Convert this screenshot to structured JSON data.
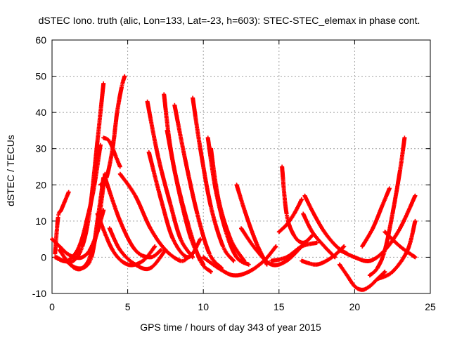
{
  "chart_data": {
    "type": "scatter",
    "title": "dSTEC Iono. truth (alic, Lon=133, Lat=-23, h=603): STEC-STEC_elemax in phase cont.",
    "xlabel": "GPS time / hours of day 343 of year 2015",
    "ylabel": "dSTEC  / TECUs",
    "xlim": [
      0,
      25
    ],
    "ylim": [
      -10,
      60
    ],
    "xticks": [
      0,
      5,
      10,
      15,
      20,
      25
    ],
    "yticks": [
      -10,
      0,
      10,
      20,
      30,
      40,
      50,
      60
    ],
    "grid": true,
    "marker": "+",
    "color": "#ff0000",
    "series": [
      {
        "x": [
          0.0,
          0.5,
          1.0,
          1.5,
          2.0,
          2.5,
          3.0,
          3.4
        ],
        "y": [
          5,
          3,
          1,
          0,
          0,
          2,
          7,
          13
        ]
      },
      {
        "x": [
          0.2,
          0.4,
          0.6,
          0.8,
          1.1
        ],
        "y": [
          1,
          11,
          13,
          15,
          18
        ]
      },
      {
        "x": [
          0.3,
          0.8,
          1.4,
          2.0,
          2.5,
          3.0,
          3.4
        ],
        "y": [
          0,
          -1,
          -1,
          3,
          13,
          32,
          48
        ]
      },
      {
        "x": [
          0.5,
          1.2,
          2.0,
          2.6,
          3.0,
          3.4
        ],
        "y": [
          2,
          -2,
          -3,
          0,
          10,
          22
        ]
      },
      {
        "x": [
          0.2,
          1.0,
          1.8,
          2.4,
          2.8,
          3.2
        ],
        "y": [
          0,
          -1,
          3,
          12,
          20,
          31
        ]
      },
      {
        "x": [
          1.0,
          1.5,
          2.0,
          2.5,
          3.0,
          3.5
        ],
        "y": [
          -1,
          -3,
          -3,
          0,
          8,
          23
        ]
      },
      {
        "x": [
          3.2,
          3.6,
          4.0,
          4.3,
          4.6,
          4.8
        ],
        "y": [
          20,
          22,
          30,
          40,
          47,
          50
        ]
      },
      {
        "x": [
          3.4,
          3.8,
          4.2,
          4.5
        ],
        "y": [
          33,
          32,
          28,
          25
        ]
      },
      {
        "x": [
          3.5,
          4.5,
          5.5,
          6.5,
          7.2
        ],
        "y": [
          22,
          10,
          2,
          0,
          2
        ]
      },
      {
        "x": [
          4.5,
          5.5,
          6.5,
          7.5,
          8.5,
          9.0
        ],
        "y": [
          23,
          17,
          8,
          2,
          -1,
          0
        ]
      },
      {
        "x": [
          3.0,
          4.0,
          5.0,
          6.0,
          6.8
        ],
        "y": [
          12,
          2,
          -2,
          -1,
          3
        ]
      },
      {
        "x": [
          3.8,
          4.5,
          5.5,
          6.5,
          7.5
        ],
        "y": [
          8,
          2,
          -2,
          -3,
          2
        ]
      },
      {
        "x": [
          6.3,
          7.0,
          7.8,
          8.5,
          9.3
        ],
        "y": [
          43,
          28,
          15,
          5,
          0
        ]
      },
      {
        "x": [
          6.4,
          7.2,
          8.0,
          9.0,
          9.8
        ],
        "y": [
          29,
          16,
          5,
          0,
          5
        ]
      },
      {
        "x": [
          7.4,
          7.8,
          8.4,
          9.2,
          10.0
        ],
        "y": [
          45,
          31,
          18,
          5,
          -2
        ]
      },
      {
        "x": [
          7.6,
          8.2,
          9.0,
          9.8,
          10.5
        ],
        "y": [
          35,
          22,
          9,
          -1,
          -4
        ]
      },
      {
        "x": [
          8.1,
          8.8,
          9.6,
          10.4,
          11.2
        ],
        "y": [
          42,
          27,
          12,
          1,
          -3
        ]
      },
      {
        "x": [
          9.3,
          9.8,
          10.5,
          11.3,
          12.0
        ],
        "y": [
          44,
          30,
          14,
          3,
          -1
        ]
      },
      {
        "x": [
          10.3,
          10.8,
          11.5,
          12.2,
          13.0
        ],
        "y": [
          33,
          19,
          7,
          0,
          -2
        ]
      },
      {
        "x": [
          10.5,
          11.0,
          11.8,
          12.7
        ],
        "y": [
          30,
          16,
          5,
          -1
        ]
      },
      {
        "x": [
          12.2,
          12.8,
          13.5,
          14.2
        ],
        "y": [
          20,
          12,
          4,
          -2
        ]
      },
      {
        "x": [
          10.0,
          11.0,
          12.0,
          13.0,
          14.0,
          14.8
        ],
        "y": [
          0,
          -3,
          -5,
          -4,
          -1,
          3
        ]
      },
      {
        "x": [
          12.5,
          13.5,
          14.5,
          15.5,
          16.5
        ],
        "y": [
          8,
          2,
          -2,
          -1,
          3
        ]
      },
      {
        "x": [
          15.2,
          15.5,
          16.0,
          16.6,
          17.2
        ],
        "y": [
          25,
          12,
          6,
          4,
          6
        ]
      },
      {
        "x": [
          15.0,
          15.5,
          16.0,
          16.5
        ],
        "y": [
          7,
          9,
          12,
          16
        ]
      },
      {
        "x": [
          14.5,
          15.5,
          16.5,
          17.5
        ],
        "y": [
          -1,
          0,
          3,
          4
        ]
      },
      {
        "x": [
          16.7,
          17.3,
          18.0,
          18.8,
          19.5
        ],
        "y": [
          17,
          12,
          7,
          3,
          1
        ]
      },
      {
        "x": [
          16.6,
          17.2,
          18.0,
          18.7
        ],
        "y": [
          12,
          7,
          3,
          0
        ]
      },
      {
        "x": [
          16.5,
          17.5,
          18.5,
          19.3
        ],
        "y": [
          -1,
          -2,
          0,
          3
        ]
      },
      {
        "x": [
          19.0,
          19.5,
          20.0,
          20.5,
          21.0,
          21.5,
          22.0
        ],
        "y": [
          -2,
          -5,
          -8,
          -9,
          -8,
          -6,
          -4
        ]
      },
      {
        "x": [
          19.0,
          20.0,
          21.0,
          22.0,
          23.0,
          24.0
        ],
        "y": [
          2,
          0,
          -1,
          2,
          8,
          17
        ]
      },
      {
        "x": [
          21.0,
          21.5,
          22.0,
          22.5,
          23.0,
          23.3
        ],
        "y": [
          -5,
          -3,
          2,
          12,
          24,
          33
        ]
      },
      {
        "x": [
          20.5,
          21.2,
          21.8,
          22.3
        ],
        "y": [
          3,
          8,
          14,
          19
        ]
      },
      {
        "x": [
          21.5,
          22.5,
          23.5,
          24.0
        ],
        "y": [
          -6,
          -4,
          2,
          10
        ]
      },
      {
        "x": [
          22.0,
          23.0,
          24.0
        ],
        "y": [
          7,
          3,
          0
        ]
      }
    ]
  }
}
